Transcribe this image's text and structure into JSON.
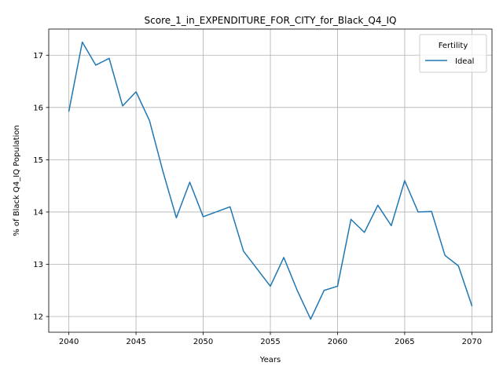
{
  "chart_data": {
    "type": "line",
    "title": "Score_1_in_EXPENDITURE_FOR_CITY_for_Black_Q4_IQ",
    "xlabel": "Years",
    "ylabel": "% of Black Q4_IQ Population",
    "xlim": [
      2038.5,
      2071.5
    ],
    "ylim": [
      11.7,
      17.5
    ],
    "xticks": [
      2040,
      2045,
      2050,
      2055,
      2060,
      2065,
      2070
    ],
    "yticks": [
      12,
      13,
      14,
      15,
      16,
      17
    ],
    "grid": true,
    "legend": {
      "title": "Fertility",
      "placement": "top-right"
    },
    "series": [
      {
        "name": "Ideal",
        "color": "#1f77b4",
        "x": [
          2040,
          2041,
          2042,
          2043,
          2044,
          2045,
          2046,
          2047,
          2048,
          2049,
          2050,
          2052,
          2053,
          2055,
          2056,
          2057,
          2058,
          2059,
          2060,
          2061,
          2062,
          2063,
          2064,
          2065,
          2066,
          2067,
          2068,
          2069,
          2070
        ],
        "y": [
          15.93,
          17.25,
          16.81,
          16.94,
          16.03,
          16.3,
          15.75,
          14.78,
          13.89,
          14.57,
          13.91,
          14.1,
          13.25,
          12.58,
          13.13,
          12.5,
          11.95,
          12.5,
          12.58,
          13.86,
          13.61,
          14.13,
          13.74,
          14.6,
          14.0,
          14.01,
          13.17,
          12.97,
          12.21
        ]
      }
    ]
  }
}
